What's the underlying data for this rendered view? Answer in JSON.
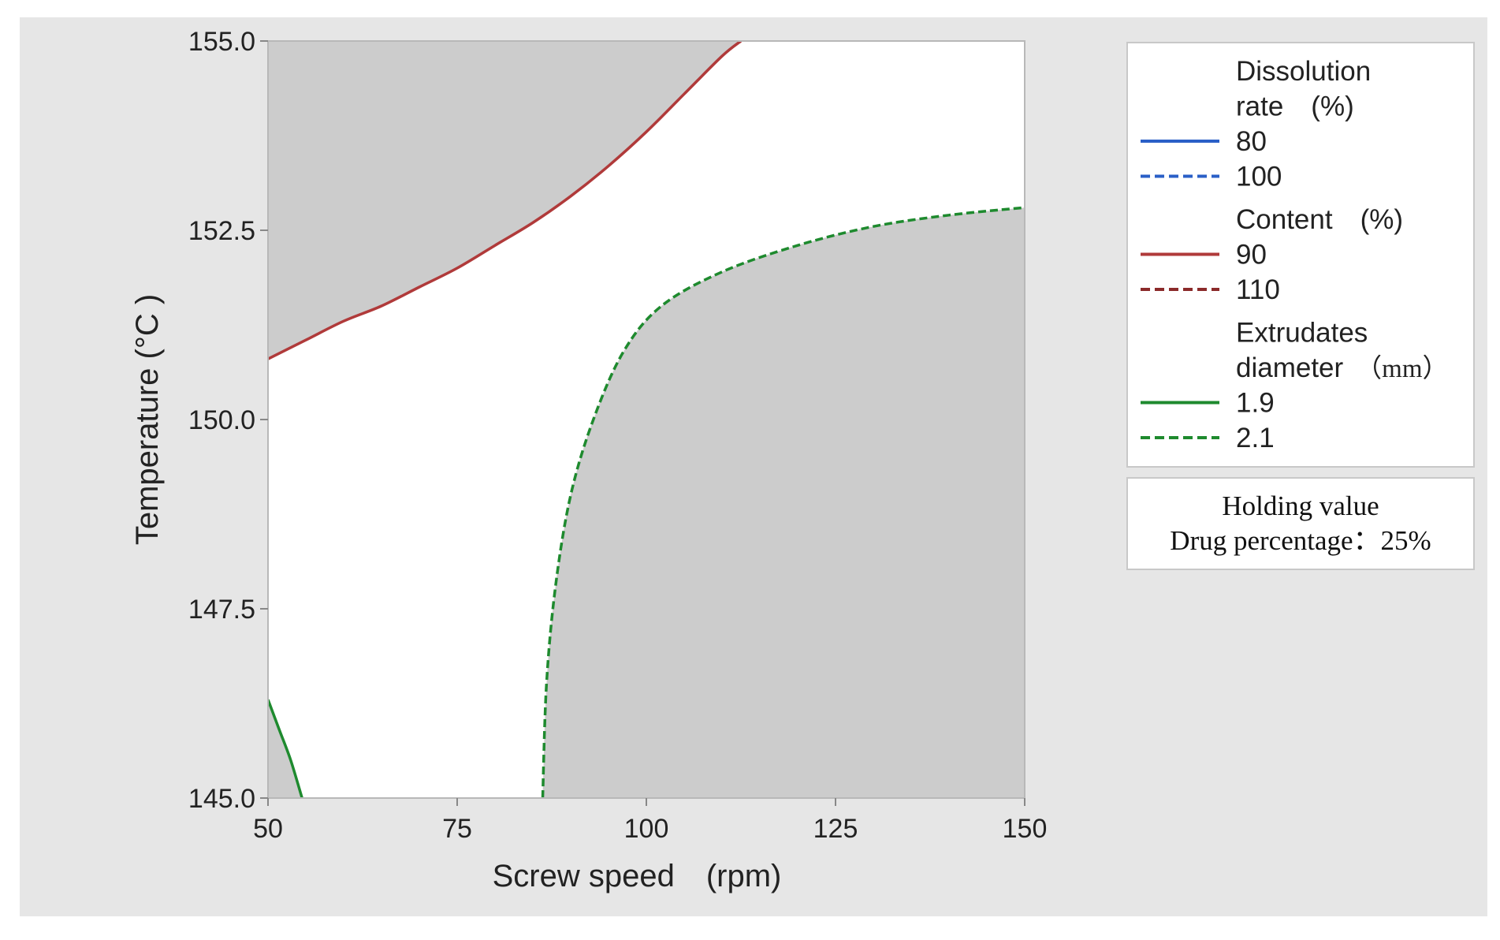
{
  "chart_data": {
    "type": "contour",
    "xlabel": "Screw speed　(rpm)",
    "ylabel": "Temperature (°C )",
    "xlim": [
      50,
      150
    ],
    "ylim": [
      145.0,
      155.0
    ],
    "x_ticks": [
      "50",
      "75",
      "100",
      "125",
      "150"
    ],
    "y_ticks": [
      "145.0",
      "147.5",
      "150.0",
      "152.5",
      "155.0"
    ],
    "legend": {
      "placement": "right",
      "groups": [
        {
          "title_lines": [
            "Dissolution",
            "rate　(%)"
          ],
          "entries": [
            {
              "label": "80",
              "color": "#2a5fc7",
              "style": "solid"
            },
            {
              "label": "100",
              "color": "#2a5fc7",
              "style": "dashed"
            }
          ]
        },
        {
          "title_lines": [
            "Content　(%)"
          ],
          "entries": [
            {
              "label": "90",
              "color": "#b03a3a",
              "style": "solid"
            },
            {
              "label": "110",
              "color": "#8b2a2a",
              "style": "dashed"
            }
          ]
        },
        {
          "title_lines": [
            "Extrudates",
            "diameter"
          ],
          "title_unit": "（mm）",
          "entries": [
            {
              "label": "1.9",
              "color": "#1e8a2e",
              "style": "solid"
            },
            {
              "label": "2.1",
              "color": "#1e8a2e",
              "style": "dashed"
            }
          ]
        }
      ]
    },
    "holding_value": {
      "title": "Holding value",
      "text": "Drug percentage：25%"
    },
    "contours": [
      {
        "name": "Content 90",
        "color": "#b03a3a",
        "style": "solid",
        "points": [
          [
            50,
            150.8
          ],
          [
            55,
            151.05
          ],
          [
            60,
            151.3
          ],
          [
            65,
            151.5
          ],
          [
            70,
            151.75
          ],
          [
            75,
            152.0
          ],
          [
            80,
            152.3
          ],
          [
            85,
            152.6
          ],
          [
            90,
            152.95
          ],
          [
            95,
            153.35
          ],
          [
            100,
            153.8
          ],
          [
            105,
            154.3
          ],
          [
            110,
            154.8
          ],
          [
            112.5,
            155.0
          ]
        ]
      },
      {
        "name": "Extrudates diameter 2.1",
        "color": "#1e8a2e",
        "style": "dashed",
        "points": [
          [
            86.3,
            145.0
          ],
          [
            86.8,
            146.5
          ],
          [
            88,
            147.8
          ],
          [
            90,
            149.0
          ],
          [
            93,
            150.0
          ],
          [
            97,
            150.9
          ],
          [
            102,
            151.5
          ],
          [
            110,
            151.95
          ],
          [
            120,
            152.3
          ],
          [
            130,
            152.55
          ],
          [
            140,
            152.7
          ],
          [
            150,
            152.8
          ]
        ]
      },
      {
        "name": "Extrudates diameter 1.9",
        "color": "#1e8a2e",
        "style": "solid",
        "points": [
          [
            50,
            146.3
          ],
          [
            51.5,
            145.9
          ],
          [
            53,
            145.5
          ],
          [
            54.5,
            145.0
          ]
        ]
      }
    ],
    "shaded_regions": [
      {
        "description_bounds": "above Content 90 contour",
        "color": "#cccccc"
      },
      {
        "description_bounds": "below-right of Extrudates diameter 2.1 contour",
        "color": "#cccccc"
      },
      {
        "description_bounds": "left of Extrudates diameter 1.9 contour",
        "color": "#cccccc"
      }
    ],
    "colors": {
      "panel_background": "#e6e6e6",
      "feasible_region": "#ffffff",
      "infeasible_region": "#cccccc"
    }
  }
}
